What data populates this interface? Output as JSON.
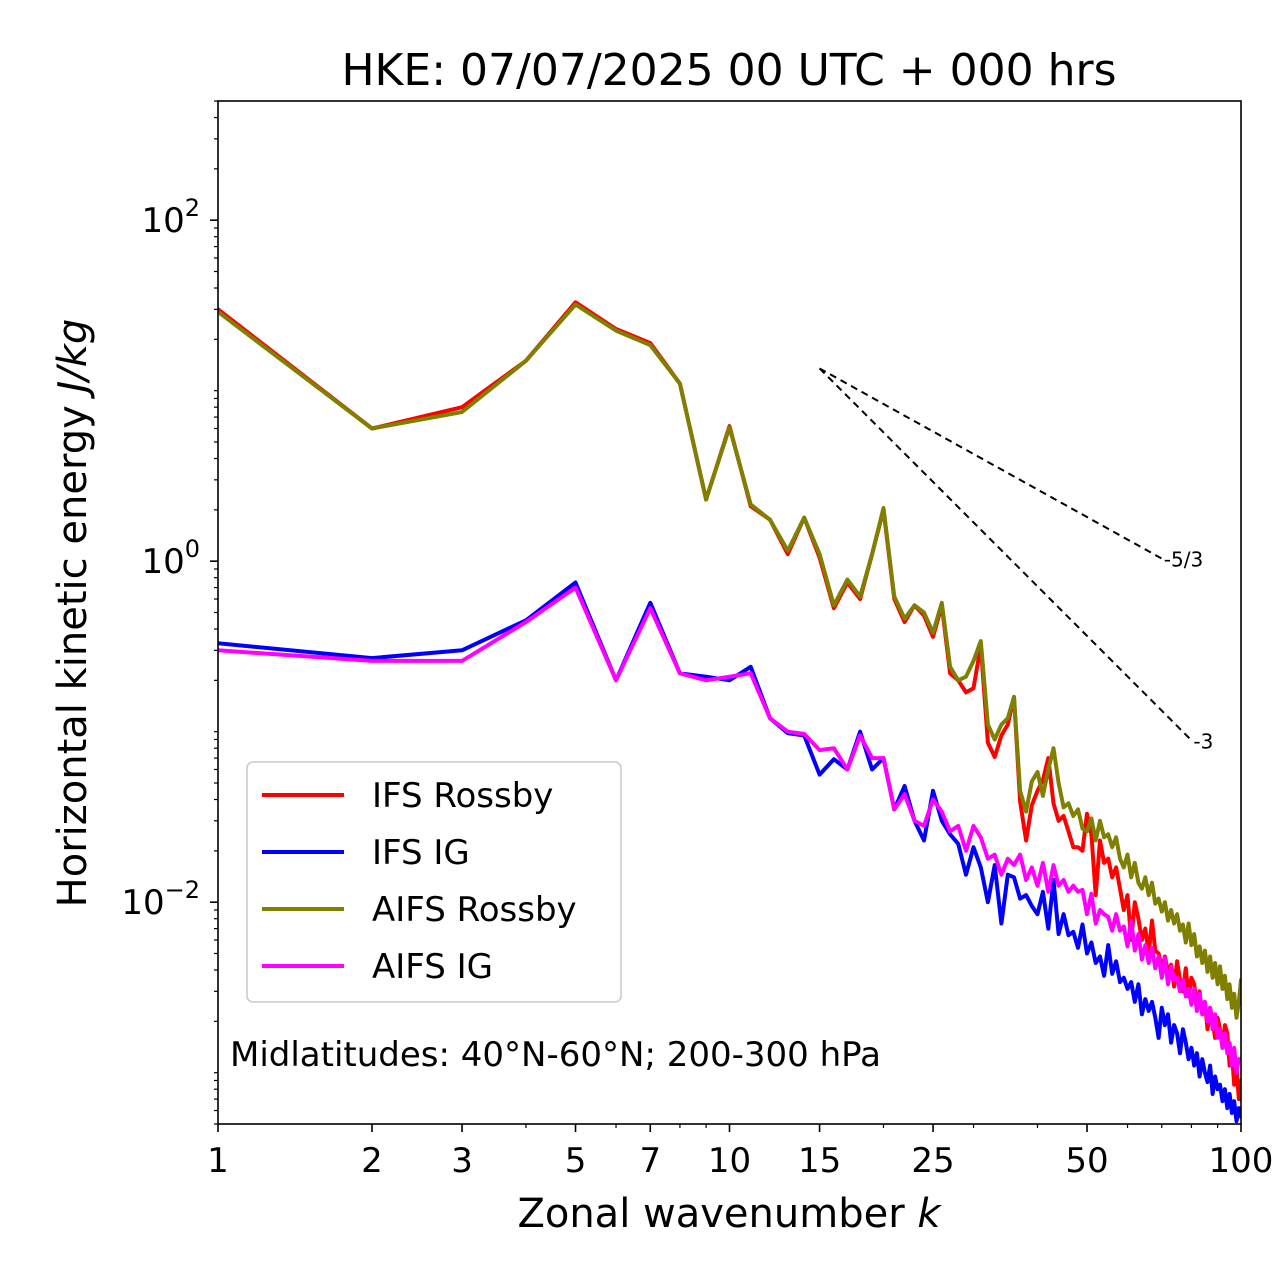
{
  "chart_data": {
    "type": "line",
    "title": "HKE: 07/07/2025 00 UTC + 000 hrs",
    "xlabel": "Zonal wavenumber",
    "xlabel_symbol": "k",
    "ylabel": "Horizontal kinetic energy",
    "ylabel_unit": "J/kg",
    "xscale": "log",
    "yscale": "log",
    "xlim": [
      1,
      100
    ],
    "ylim": [
      0.0005,
      500
    ],
    "x_ticks": [
      {
        "value": 1,
        "label": "1"
      },
      {
        "value": 2,
        "label": "2"
      },
      {
        "value": 3,
        "label": "3"
      },
      {
        "value": 5,
        "label": "5"
      },
      {
        "value": 7,
        "label": "7"
      },
      {
        "value": 10,
        "label": "10"
      },
      {
        "value": 15,
        "label": "15"
      },
      {
        "value": 25,
        "label": "25"
      },
      {
        "value": 50,
        "label": "50"
      },
      {
        "value": 100,
        "label": "100"
      }
    ],
    "y_ticks": [
      {
        "value": 100,
        "base": "10",
        "exp": "2"
      },
      {
        "value": 1,
        "base": "10",
        "exp": "0"
      },
      {
        "value": 0.01,
        "base": "10",
        "exp": "−2"
      }
    ],
    "grid": false,
    "legend_position": "lower-left",
    "annotation": "Midlatitudes: 40°N-60°N; 200-300 hPa",
    "reference_slopes": [
      {
        "label": "-5/3",
        "slope": -1.6667,
        "x": [
          15,
          70
        ],
        "y0": 13.5
      },
      {
        "label": "-3",
        "slope": -3,
        "x": [
          15,
          80
        ],
        "y0": 13.5
      }
    ],
    "series": [
      {
        "name": "IFS Rossby",
        "color": "#ff0000",
        "x": [
          1,
          2,
          3,
          4,
          5,
          6,
          7,
          8,
          9,
          10,
          11,
          12,
          13,
          14,
          15,
          16,
          17,
          18,
          19,
          20,
          21,
          22,
          23,
          24,
          25,
          26,
          27,
          28,
          29,
          30,
          31,
          32,
          33,
          34,
          35,
          36,
          37,
          38,
          39,
          40,
          41,
          42,
          43,
          44,
          45,
          46,
          47,
          48,
          49,
          50,
          51,
          52,
          53,
          54,
          55,
          56,
          57,
          58,
          59,
          60,
          61,
          62,
          63,
          64,
          65,
          66,
          67,
          68,
          69,
          70,
          71,
          72,
          73,
          74,
          75,
          76,
          77,
          78,
          79,
          80,
          81,
          82,
          83,
          84,
          85,
          86,
          87,
          88,
          89,
          90,
          91,
          92,
          93,
          94,
          95,
          96,
          97,
          98,
          99,
          100
        ],
        "y": [
          30,
          6,
          8,
          15,
          33,
          23,
          19,
          11,
          2.3,
          6.2,
          2.1,
          1.75,
          1.1,
          1.8,
          1.05,
          0.53,
          0.75,
          0.6,
          1.1,
          2,
          0.6,
          0.44,
          0.55,
          0.48,
          0.36,
          0.55,
          0.22,
          0.2,
          0.17,
          0.18,
          0.32,
          0.086,
          0.071,
          0.095,
          0.11,
          0.16,
          0.039,
          0.023,
          0.037,
          0.045,
          0.052,
          0.07,
          0.038,
          0.03,
          0.032,
          0.026,
          0.021,
          0.021,
          0.02,
          0.033,
          0.025,
          0.011,
          0.023,
          0.017,
          0.018,
          0.014,
          0.016,
          0.012,
          0.009,
          0.011,
          0.006,
          0.01,
          0.008,
          0.006,
          0.007,
          0.005,
          0.0078,
          0.0052,
          0.005,
          0.0041,
          0.0048,
          0.0039,
          0.0043,
          0.0032,
          0.0045,
          0.0035,
          0.003,
          0.0041,
          0.0028,
          0.0036,
          0.0033,
          0.0025,
          0.003,
          0.0022,
          0.0026,
          0.0018,
          0.0024,
          0.002,
          0.0016,
          0.0021,
          0.0018,
          0.0014,
          0.0019,
          0.0017,
          0.0011,
          0.0013,
          0.00085,
          0.0011,
          0.0007,
          0.0009
        ]
      },
      {
        "name": "IFS IG",
        "color": "#0000ff",
        "x": [
          1,
          2,
          3,
          4,
          5,
          6,
          7,
          8,
          9,
          10,
          11,
          12,
          13,
          14,
          15,
          16,
          17,
          18,
          19,
          20,
          21,
          22,
          23,
          24,
          25,
          26,
          27,
          28,
          29,
          30,
          31,
          32,
          33,
          34,
          35,
          36,
          37,
          38,
          39,
          40,
          41,
          42,
          43,
          44,
          45,
          46,
          47,
          48,
          49,
          50,
          51,
          52,
          53,
          54,
          55,
          56,
          57,
          58,
          59,
          60,
          61,
          62,
          63,
          64,
          65,
          66,
          67,
          68,
          69,
          70,
          71,
          72,
          73,
          74,
          75,
          76,
          77,
          78,
          79,
          80,
          81,
          82,
          83,
          84,
          85,
          86,
          87,
          88,
          89,
          90,
          91,
          92,
          93,
          94,
          95,
          96,
          97,
          98,
          99,
          100
        ],
        "y": [
          0.33,
          0.27,
          0.3,
          0.45,
          0.75,
          0.2,
          0.57,
          0.22,
          0.21,
          0.2,
          0.24,
          0.12,
          0.098,
          0.095,
          0.056,
          0.069,
          0.06,
          0.1,
          0.06,
          0.07,
          0.035,
          0.048,
          0.03,
          0.023,
          0.045,
          0.03,
          0.025,
          0.022,
          0.0145,
          0.021,
          0.016,
          0.01,
          0.0165,
          0.0075,
          0.0145,
          0.014,
          0.0105,
          0.011,
          0.0095,
          0.0085,
          0.0115,
          0.007,
          0.0135,
          0.0065,
          0.0085,
          0.0064,
          0.0067,
          0.0054,
          0.0074,
          0.005,
          0.0058,
          0.0044,
          0.0048,
          0.0037,
          0.0056,
          0.0038,
          0.0045,
          0.0034,
          0.0036,
          0.0031,
          0.0034,
          0.0026,
          0.0033,
          0.0022,
          0.0027,
          0.0023,
          0.0026,
          0.0021,
          0.0016,
          0.0024,
          0.0019,
          0.0022,
          0.0015,
          0.0019,
          0.0017,
          0.0013,
          0.0018,
          0.0015,
          0.0012,
          0.0014,
          0.0011,
          0.0013,
          0.00095,
          0.0012,
          0.001,
          0.00088,
          0.0011,
          0.00075,
          0.00095,
          0.0008,
          0.00085,
          0.00068,
          0.0008,
          0.00062,
          0.00075,
          0.00058,
          0.00068,
          0.00052,
          0.00062,
          0.00055
        ]
      },
      {
        "name": "AIFS Rossby",
        "color": "#808000",
        "x": [
          1,
          2,
          3,
          4,
          5,
          6,
          7,
          8,
          9,
          10,
          11,
          12,
          13,
          14,
          15,
          16,
          17,
          18,
          19,
          20,
          21,
          22,
          23,
          24,
          25,
          26,
          27,
          28,
          29,
          30,
          31,
          32,
          33,
          34,
          35,
          36,
          37,
          38,
          39,
          40,
          41,
          42,
          43,
          44,
          45,
          46,
          47,
          48,
          49,
          50,
          51,
          52,
          53,
          54,
          55,
          56,
          57,
          58,
          59,
          60,
          61,
          62,
          63,
          64,
          65,
          66,
          67,
          68,
          69,
          70,
          71,
          72,
          73,
          74,
          75,
          76,
          77,
          78,
          79,
          80,
          81,
          82,
          83,
          84,
          85,
          86,
          87,
          88,
          89,
          90,
          91,
          92,
          93,
          94,
          95,
          96,
          97,
          98,
          99,
          100
        ],
        "y": [
          29,
          6,
          7.5,
          15,
          32,
          22.5,
          18.5,
          11,
          2.3,
          6.1,
          2.15,
          1.75,
          1.15,
          1.8,
          1.1,
          0.55,
          0.78,
          0.62,
          1.1,
          2.05,
          0.62,
          0.46,
          0.55,
          0.5,
          0.38,
          0.57,
          0.24,
          0.2,
          0.21,
          0.26,
          0.34,
          0.11,
          0.09,
          0.11,
          0.12,
          0.16,
          0.045,
          0.034,
          0.051,
          0.058,
          0.042,
          0.06,
          0.08,
          0.05,
          0.036,
          0.038,
          0.032,
          0.035,
          0.027,
          0.026,
          0.031,
          0.023,
          0.03,
          0.024,
          0.025,
          0.021,
          0.024,
          0.018,
          0.016,
          0.019,
          0.014,
          0.017,
          0.013,
          0.012,
          0.014,
          0.011,
          0.013,
          0.0098,
          0.0105,
          0.0088,
          0.01,
          0.0078,
          0.009,
          0.0075,
          0.0085,
          0.0068,
          0.0074,
          0.0058,
          0.0075,
          0.0056,
          0.0065,
          0.0048,
          0.0055,
          0.0044,
          0.0052,
          0.0039,
          0.0048,
          0.0036,
          0.0044,
          0.0033,
          0.0042,
          0.0031,
          0.0037,
          0.0027,
          0.0033,
          0.0024,
          0.0029,
          0.0021,
          0.0026,
          0.0035
        ]
      },
      {
        "name": "AIFS IG",
        "color": "#ff00ff",
        "x": [
          1,
          2,
          3,
          4,
          5,
          6,
          7,
          8,
          9,
          10,
          11,
          12,
          13,
          14,
          15,
          16,
          17,
          18,
          19,
          20,
          21,
          22,
          23,
          24,
          25,
          26,
          27,
          28,
          29,
          30,
          31,
          32,
          33,
          34,
          35,
          36,
          37,
          38,
          39,
          40,
          41,
          42,
          43,
          44,
          45,
          46,
          47,
          48,
          49,
          50,
          51,
          52,
          53,
          54,
          55,
          56,
          57,
          58,
          59,
          60,
          61,
          62,
          63,
          64,
          65,
          66,
          67,
          68,
          69,
          70,
          71,
          72,
          73,
          74,
          75,
          76,
          77,
          78,
          79,
          80,
          81,
          82,
          83,
          84,
          85,
          86,
          87,
          88,
          89,
          90,
          91,
          92,
          93,
          94,
          95,
          96,
          97,
          98,
          99,
          100
        ],
        "y": [
          0.3,
          0.26,
          0.26,
          0.44,
          0.7,
          0.2,
          0.53,
          0.22,
          0.2,
          0.21,
          0.22,
          0.12,
          0.1,
          0.097,
          0.078,
          0.08,
          0.06,
          0.095,
          0.07,
          0.07,
          0.035,
          0.043,
          0.03,
          0.028,
          0.04,
          0.034,
          0.026,
          0.028,
          0.02,
          0.028,
          0.024,
          0.018,
          0.019,
          0.0145,
          0.018,
          0.0165,
          0.019,
          0.0135,
          0.016,
          0.0125,
          0.017,
          0.0115,
          0.0165,
          0.0125,
          0.0135,
          0.0115,
          0.0125,
          0.0115,
          0.0118,
          0.0085,
          0.0112,
          0.0075,
          0.009,
          0.0085,
          0.0082,
          0.0068,
          0.0085,
          0.0068,
          0.0072,
          0.0055,
          0.0078,
          0.0052,
          0.0065,
          0.0046,
          0.0056,
          0.0044,
          0.0054,
          0.0041,
          0.0048,
          0.0036,
          0.0047,
          0.0033,
          0.0042,
          0.0035,
          0.0036,
          0.003,
          0.0035,
          0.0028,
          0.0031,
          0.0025,
          0.0031,
          0.0023,
          0.0029,
          0.0022,
          0.0026,
          0.002,
          0.0024,
          0.0018,
          0.0022,
          0.0016,
          0.0018,
          0.0014,
          0.0017,
          0.0013,
          0.0015,
          0.0011,
          0.0014,
          0.001,
          0.0012,
          0.0012
        ]
      }
    ]
  }
}
